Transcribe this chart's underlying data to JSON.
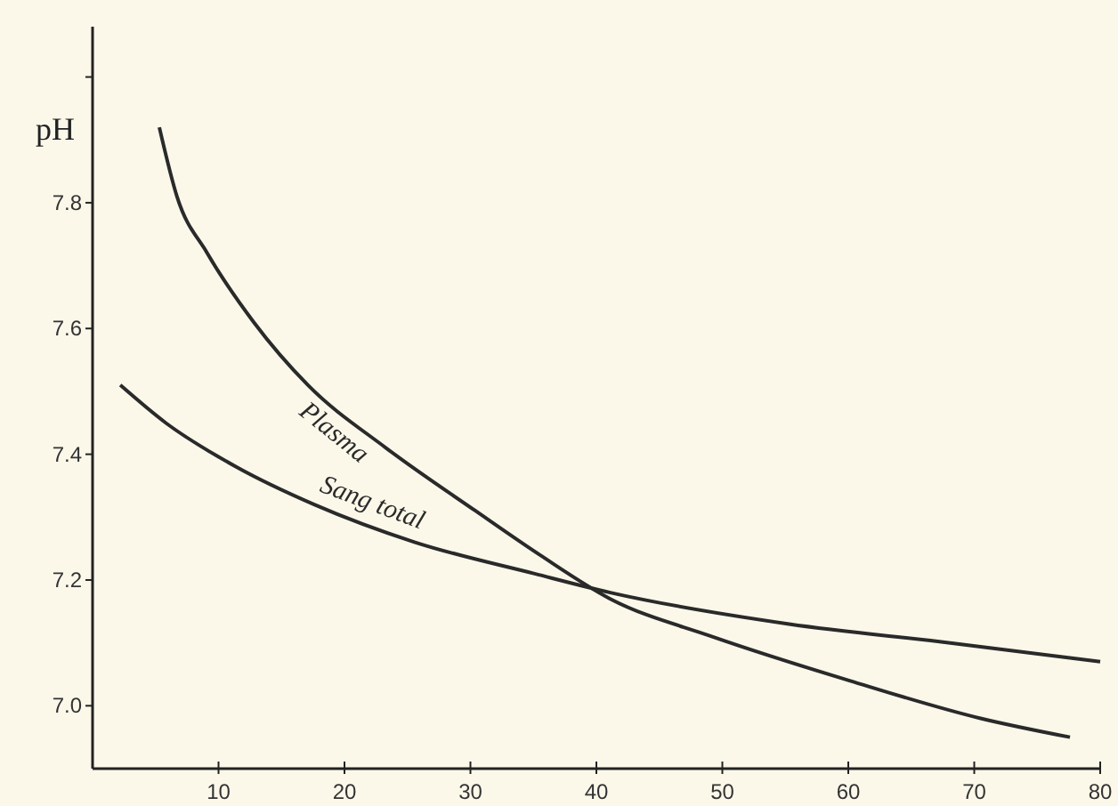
{
  "chart_data": {
    "type": "line",
    "ylabel": "pH",
    "xlim": [
      0,
      80
    ],
    "ylim": [
      6.9,
      8.08
    ],
    "xticks": [
      10,
      20,
      30,
      40,
      50,
      60,
      70,
      80
    ],
    "yticks": [
      {
        "value": 7.0,
        "label": "7.0"
      },
      {
        "value": 7.2,
        "label": "7.2"
      },
      {
        "value": 7.4,
        "label": "7.4"
      },
      {
        "value": 7.6,
        "label": "7.6"
      },
      {
        "value": 7.8,
        "label": "7.8"
      },
      {
        "value": 8.0,
        "label": null
      }
    ],
    "grid": false,
    "marker": "none",
    "line_style": "solid",
    "series": [
      {
        "name": "Plasma",
        "color": "#2a2a2a",
        "x": [
          5.3,
          6.7,
          9.1,
          12.8,
          17.1,
          23.3,
          30.4,
          35.5,
          41.1,
          49.2,
          60.1,
          70.5,
          77.6
        ],
        "values": [
          7.92,
          7.81,
          7.72,
          7.61,
          7.51,
          7.41,
          7.31,
          7.24,
          7.17,
          7.11,
          7.04,
          6.98,
          6.95
        ]
      },
      {
        "name": "Sang total",
        "color": "#2a2a2a",
        "x": [
          2.2,
          5.8,
          11.4,
          17.6,
          25.6,
          35.1,
          41.1,
          55.3,
          68.1,
          80
        ],
        "values": [
          7.51,
          7.45,
          7.38,
          7.32,
          7.26,
          7.21,
          7.18,
          7.13,
          7.1,
          7.07
        ]
      }
    ]
  }
}
